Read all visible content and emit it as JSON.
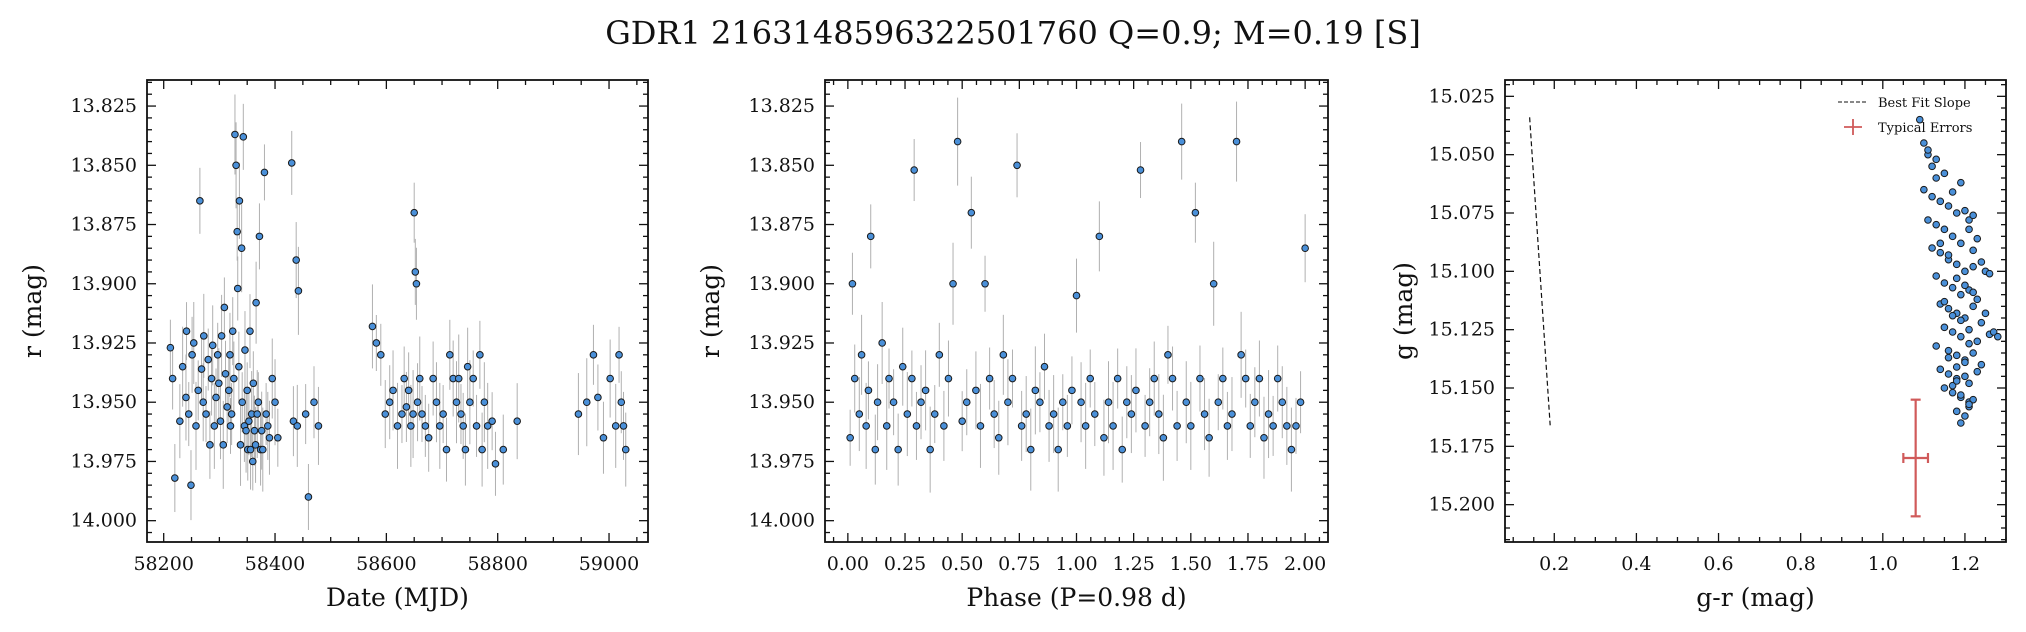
{
  "title": "GDR1 2163148596322501760  Q=0.9; M=0.19 [S]",
  "colors": {
    "point": "#4a90d9",
    "edge": "#1a1a1a",
    "errbar": "#b0b0b0",
    "typical": "#d05a5a",
    "slope": "#111111"
  },
  "chart_data": [
    {
      "type": "scatter",
      "xlabel": "Date (MJD)",
      "ylabel": "r (mag)",
      "xlim": [
        58170,
        59070
      ],
      "ylim": [
        14.009,
        13.814
      ],
      "y_inverted": true,
      "xticks": [
        58200,
        58400,
        58600,
        58800,
        59000
      ],
      "yticks": [
        13.825,
        13.85,
        13.875,
        13.9,
        13.925,
        13.95,
        13.975,
        14.0
      ],
      "x": [
        58212,
        58216,
        58220,
        58229,
        58234,
        58240,
        58241,
        58245,
        58249,
        58251,
        58254,
        58258,
        58262,
        58265,
        58268,
        58271,
        58272,
        58276,
        58280,
        58283,
        58286,
        58288,
        58291,
        58294,
        58297,
        58299,
        58302,
        58304,
        58307,
        58309,
        58311,
        58314,
        58317,
        58319,
        58320,
        58322,
        58324,
        58326,
        58328,
        58330,
        58332,
        58333,
        58335,
        58336,
        58338,
        58340,
        58341,
        58343,
        58345,
        58346,
        58348,
        58350,
        58351,
        58353,
        58355,
        58356,
        58358,
        58360,
        58361,
        58363,
        58365,
        58366,
        58368,
        58370,
        58372,
        58374,
        58376,
        58378,
        58381,
        58384,
        58387,
        58390,
        58395,
        58400,
        58405,
        58430,
        58433,
        58438,
        58440,
        58442,
        58455,
        58460,
        58470,
        58478,
        58575,
        58582,
        58590,
        58598,
        58606,
        58612,
        58620,
        58628,
        58632,
        58636,
        58640,
        58644,
        58648,
        58650,
        58652,
        58654,
        58656,
        58660,
        58664,
        58670,
        58676,
        58684,
        58690,
        58696,
        58702,
        58708,
        58714,
        58720,
        58726,
        58730,
        58734,
        58738,
        58742,
        58746,
        58750,
        58756,
        58762,
        58768,
        58772,
        58776,
        58782,
        58790,
        58796,
        58810,
        58835,
        58945,
        58960,
        58972,
        58980,
        58990,
        59002,
        59012,
        59018,
        59022,
        59026,
        59030
      ],
      "y": [
        13.927,
        13.94,
        13.982,
        13.958,
        13.935,
        13.948,
        13.92,
        13.955,
        13.985,
        13.93,
        13.925,
        13.96,
        13.945,
        13.865,
        13.936,
        13.95,
        13.922,
        13.955,
        13.932,
        13.968,
        13.94,
        13.926,
        13.96,
        13.948,
        13.93,
        13.942,
        13.958,
        13.922,
        13.968,
        13.91,
        13.938,
        13.952,
        13.945,
        13.93,
        13.96,
        13.955,
        13.92,
        13.94,
        13.837,
        13.85,
        13.878,
        13.902,
        13.935,
        13.865,
        13.968,
        13.885,
        13.95,
        13.838,
        13.96,
        13.928,
        13.962,
        13.945,
        13.97,
        13.958,
        13.92,
        13.97,
        13.955,
        13.975,
        13.942,
        13.962,
        13.968,
        13.908,
        13.955,
        13.95,
        13.88,
        13.97,
        13.962,
        13.97,
        13.853,
        13.955,
        13.96,
        13.965,
        13.94,
        13.95,
        13.965,
        13.849,
        13.958,
        13.89,
        13.96,
        13.903,
        13.955,
        13.99,
        13.95,
        13.96,
        13.918,
        13.925,
        13.93,
        13.955,
        13.95,
        13.945,
        13.96,
        13.955,
        13.94,
        13.952,
        13.945,
        13.96,
        13.955,
        13.87,
        13.895,
        13.9,
        13.95,
        13.94,
        13.955,
        13.96,
        13.965,
        13.94,
        13.95,
        13.96,
        13.955,
        13.97,
        13.93,
        13.94,
        13.95,
        13.94,
        13.955,
        13.96,
        13.97,
        13.935,
        13.95,
        13.94,
        13.96,
        13.93,
        13.97,
        13.95,
        13.96,
        13.958,
        13.976,
        13.97,
        13.958,
        13.955,
        13.95,
        13.93,
        13.948,
        13.965,
        13.94,
        13.96,
        13.93,
        13.95,
        13.96,
        13.97
      ]
    },
    {
      "type": "scatter",
      "xlabel": "Phase (P=0.98 d)",
      "ylabel": "r (mag)",
      "xlim": [
        -0.1,
        2.1
      ],
      "ylim": [
        14.009,
        13.814
      ],
      "y_inverted": true,
      "xticks": [
        0.0,
        0.25,
        0.5,
        0.75,
        1.0,
        1.25,
        1.5,
        1.75,
        2.0
      ],
      "yticks": [
        13.825,
        13.85,
        13.875,
        13.9,
        13.925,
        13.95,
        13.975,
        14.0
      ],
      "x": [
        0.01,
        0.02,
        0.03,
        0.05,
        0.06,
        0.08,
        0.09,
        0.1,
        0.12,
        0.13,
        0.15,
        0.17,
        0.18,
        0.2,
        0.22,
        0.24,
        0.26,
        0.28,
        0.29,
        0.3,
        0.32,
        0.34,
        0.36,
        0.38,
        0.4,
        0.42,
        0.44,
        0.46,
        0.48,
        0.5,
        0.52,
        0.54,
        0.56,
        0.58,
        0.6,
        0.62,
        0.64,
        0.66,
        0.68,
        0.7,
        0.72,
        0.74,
        0.76,
        0.78,
        0.8,
        0.82,
        0.84,
        0.86,
        0.88,
        0.9,
        0.92,
        0.94,
        0.96,
        0.98,
        1.0,
        1.02,
        1.04,
        1.06,
        1.08,
        1.1,
        1.12,
        1.14,
        1.16,
        1.18,
        1.2,
        1.22,
        1.24,
        1.26,
        1.28,
        1.3,
        1.32,
        1.34,
        1.36,
        1.38,
        1.4,
        1.42,
        1.44,
        1.46,
        1.48,
        1.5,
        1.52,
        1.54,
        1.56,
        1.58,
        1.6,
        1.62,
        1.64,
        1.66,
        1.68,
        1.7,
        1.72,
        1.74,
        1.76,
        1.78,
        1.8,
        1.82,
        1.84,
        1.86,
        1.88,
        1.9,
        1.92,
        1.94,
        1.96,
        1.98,
        2.0
      ],
      "y": [
        13.965,
        13.9,
        13.94,
        13.955,
        13.93,
        13.96,
        13.945,
        13.88,
        13.97,
        13.95,
        13.925,
        13.96,
        13.94,
        13.95,
        13.97,
        13.935,
        13.955,
        13.94,
        13.852,
        13.96,
        13.95,
        13.945,
        13.97,
        13.955,
        13.93,
        13.96,
        13.94,
        13.9,
        13.84,
        13.958,
        13.95,
        13.87,
        13.945,
        13.96,
        13.9,
        13.94,
        13.955,
        13.965,
        13.93,
        13.95,
        13.94,
        13.85,
        13.96,
        13.955,
        13.97,
        13.945,
        13.95,
        13.935,
        13.96,
        13.955,
        13.97,
        13.95,
        13.96,
        13.945,
        13.905,
        13.95,
        13.96,
        13.94,
        13.955,
        13.88,
        13.965,
        13.95,
        13.96,
        13.94,
        13.97,
        13.95,
        13.955,
        13.945,
        13.852,
        13.96,
        13.95,
        13.94,
        13.955,
        13.965,
        13.93,
        13.94,
        13.96,
        13.84,
        13.95,
        13.96,
        13.87,
        13.94,
        13.955,
        13.965,
        13.9,
        13.95,
        13.94,
        13.96,
        13.955,
        13.84,
        13.93,
        13.94,
        13.96,
        13.95,
        13.94,
        13.965,
        13.955,
        13.96,
        13.94,
        13.95,
        13.96,
        13.97,
        13.96,
        13.95,
        13.885
      ]
    },
    {
      "type": "scatter",
      "xlabel": "g-r (mag)",
      "ylabel": "g (mag)",
      "xlim": [
        0.08,
        1.3
      ],
      "ylim": [
        15.216,
        15.018
      ],
      "y_inverted": true,
      "xticks": [
        0.2,
        0.4,
        0.6,
        0.8,
        1.0,
        1.2
      ],
      "yticks": [
        15.025,
        15.05,
        15.075,
        15.1,
        15.125,
        15.15,
        15.175,
        15.2
      ],
      "legend": {
        "placement": "upper-right",
        "entries": [
          "Best Fit Slope",
          "Typical Errors"
        ]
      },
      "best_fit_slope": {
        "x": [
          0.14,
          0.19
        ],
        "y": [
          15.034,
          15.166
        ]
      },
      "typical_error": {
        "x": 1.08,
        "y": 15.18,
        "xerr": 0.03,
        "yerr": 0.025
      },
      "x": [
        1.09,
        1.1,
        1.11,
        1.12,
        1.13,
        1.1,
        1.12,
        1.14,
        1.16,
        1.18,
        1.11,
        1.13,
        1.15,
        1.17,
        1.19,
        1.21,
        1.12,
        1.14,
        1.16,
        1.18,
        1.2,
        1.22,
        1.13,
        1.15,
        1.17,
        1.19,
        1.21,
        1.23,
        1.25,
        1.14,
        1.16,
        1.18,
        1.2,
        1.22,
        1.24,
        1.15,
        1.17,
        1.19,
        1.21,
        1.23,
        1.26,
        1.13,
        1.16,
        1.18,
        1.2,
        1.22,
        1.24,
        1.27,
        1.14,
        1.16,
        1.18,
        1.21,
        1.23,
        1.15,
        1.17,
        1.19,
        1.21,
        1.25,
        1.28,
        1.14,
        1.16,
        1.18,
        1.2,
        1.22,
        1.15,
        1.17,
        1.19,
        1.21,
        1.16,
        1.18,
        1.2,
        1.17,
        1.19,
        1.21,
        1.18,
        1.2,
        1.22,
        1.19,
        1.21,
        1.2,
        1.22,
        1.21,
        1.23,
        1.22,
        1.19,
        1.17,
        1.15,
        1.13,
        1.11,
        1.24,
        1.26,
        1.2,
        1.18
      ],
      "y": [
        15.035,
        15.045,
        15.05,
        15.055,
        15.06,
        15.065,
        15.068,
        15.07,
        15.072,
        15.075,
        15.078,
        15.08,
        15.082,
        15.085,
        15.088,
        15.078,
        15.09,
        15.092,
        15.095,
        15.097,
        15.1,
        15.098,
        15.102,
        15.105,
        15.107,
        15.11,
        15.108,
        15.112,
        15.1,
        15.114,
        15.116,
        15.118,
        15.12,
        15.115,
        15.122,
        15.124,
        15.126,
        15.128,
        15.125,
        15.13,
        15.127,
        15.132,
        15.134,
        15.136,
        15.138,
        15.135,
        15.14,
        15.126,
        15.142,
        15.144,
        15.146,
        15.148,
        15.143,
        15.15,
        15.152,
        15.154,
        15.156,
        15.118,
        15.128,
        15.088,
        15.093,
        15.103,
        15.106,
        15.109,
        15.113,
        15.119,
        15.121,
        15.131,
        15.137,
        15.141,
        15.145,
        15.149,
        15.153,
        15.158,
        15.16,
        15.162,
        15.155,
        15.165,
        15.157,
        15.074,
        15.076,
        15.082,
        15.086,
        15.091,
        15.062,
        15.066,
        15.058,
        15.052,
        15.048,
        15.096,
        15.101,
        15.139,
        15.147
      ]
    }
  ]
}
